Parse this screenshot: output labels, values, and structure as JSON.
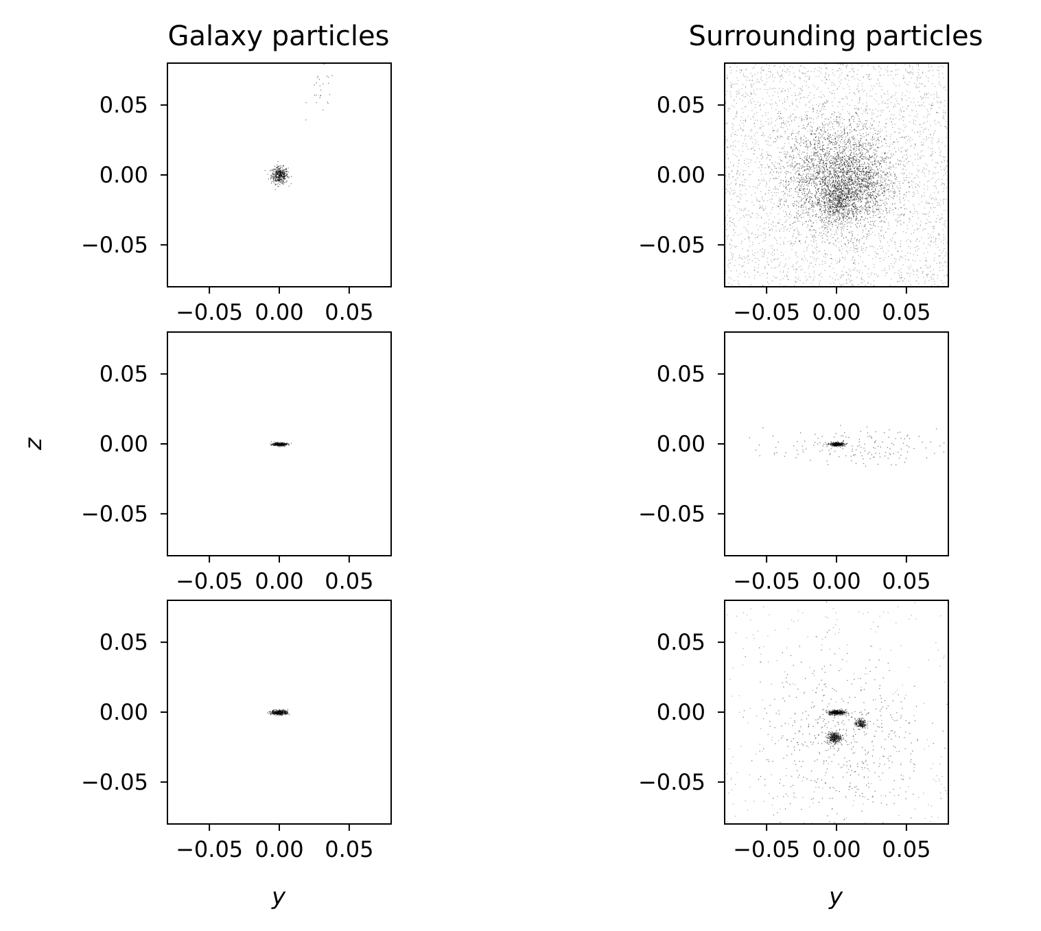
{
  "figure": {
    "column_titles": [
      "Galaxy particles",
      "Surrounding particles"
    ],
    "xlabel": "y",
    "ylabel": "z"
  },
  "colors": {
    "axes": "#000000",
    "particles": "#000000",
    "background": "#ffffff"
  },
  "chart_data": [
    {
      "type": "scatter",
      "panel": "row1-col1",
      "column": "Galaxy particles",
      "xlim": [
        -0.08,
        0.08
      ],
      "ylim": [
        -0.08,
        0.08
      ],
      "xticks": [
        -0.05,
        0.0,
        0.05
      ],
      "xtick_labels": [
        "−0.05",
        "0.00",
        "0.05"
      ],
      "yticks": [
        -0.05,
        0.0,
        0.05
      ],
      "ytick_labels": [
        "−0.05",
        "0.00",
        "0.05"
      ],
      "grid": false,
      "clusters": [
        {
          "center": [
            0.0,
            0.0
          ],
          "spread": [
            0.003,
            0.003
          ],
          "points": 420
        },
        {
          "center": [
            0.03,
            0.06
          ],
          "spread": [
            0.005,
            0.008
          ],
          "points": 25
        }
      ]
    },
    {
      "type": "scatter",
      "panel": "row1-col2",
      "column": "Surrounding particles",
      "xlim": [
        -0.08,
        0.08
      ],
      "ylim": [
        -0.08,
        0.08
      ],
      "xticks": [
        -0.05,
        0.0,
        0.05
      ],
      "xtick_labels": [
        "−0.05",
        "0.00",
        "0.05"
      ],
      "yticks": [
        -0.05,
        0.0,
        0.05
      ],
      "ytick_labels": [
        "−0.05",
        "0.00",
        "0.05"
      ],
      "grid": false,
      "uniform_background_points": 3200,
      "clusters": [
        {
          "center": [
            0.0,
            0.0
          ],
          "spread": [
            0.02,
            0.02
          ],
          "points": 2200
        },
        {
          "center": [
            0.0,
            -0.018
          ],
          "spread": [
            0.008,
            0.008
          ],
          "points": 500
        },
        {
          "center": [
            0.015,
            -0.008
          ],
          "spread": [
            0.012,
            0.012
          ],
          "points": 600
        }
      ]
    },
    {
      "type": "scatter",
      "panel": "row2-col1",
      "column": "Galaxy particles",
      "xlim": [
        -0.08,
        0.08
      ],
      "ylim": [
        -0.08,
        0.08
      ],
      "xticks": [
        -0.05,
        0.0,
        0.05
      ],
      "xtick_labels": [
        "−0.05",
        "0.00",
        "0.05"
      ],
      "yticks": [
        -0.05,
        0.0,
        0.05
      ],
      "ytick_labels": [
        "−0.05",
        "0.00",
        "0.05"
      ],
      "grid": false,
      "clusters": [
        {
          "center": [
            0.0,
            0.0
          ],
          "spread": [
            0.0025,
            0.0006
          ],
          "points": 350
        }
      ]
    },
    {
      "type": "scatter",
      "panel": "row2-col2",
      "column": "Surrounding particles",
      "xlim": [
        -0.08,
        0.08
      ],
      "ylim": [
        -0.08,
        0.08
      ],
      "xticks": [
        -0.05,
        0.0,
        0.05
      ],
      "xtick_labels": [
        "−0.05",
        "0.00",
        "0.05"
      ],
      "yticks": [
        -0.05,
        0.0,
        0.05
      ],
      "ytick_labels": [
        "−0.05",
        "0.00",
        "0.05"
      ],
      "grid": false,
      "clusters": [
        {
          "center": [
            0.0,
            0.0
          ],
          "spread": [
            0.0025,
            0.0006
          ],
          "points": 380
        },
        {
          "center": [
            0.01,
            -0.002
          ],
          "spread": [
            0.03,
            0.006
          ],
          "points": 160
        }
      ]
    },
    {
      "type": "scatter",
      "panel": "row3-col1",
      "column": "Galaxy particles",
      "xlim": [
        -0.08,
        0.08
      ],
      "ylim": [
        -0.08,
        0.08
      ],
      "xticks": [
        -0.05,
        0.0,
        0.05
      ],
      "xtick_labels": [
        "−0.05",
        "0.00",
        "0.05"
      ],
      "yticks": [
        -0.05,
        0.0,
        0.05
      ],
      "ytick_labels": [
        "−0.05",
        "0.00",
        "0.05"
      ],
      "grid": false,
      "clusters": [
        {
          "center": [
            0.0,
            0.0
          ],
          "spread": [
            0.003,
            0.0009
          ],
          "points": 380
        }
      ]
    },
    {
      "type": "scatter",
      "panel": "row3-col2",
      "column": "Surrounding particles",
      "xlim": [
        -0.08,
        0.08
      ],
      "ylim": [
        -0.08,
        0.08
      ],
      "xticks": [
        -0.05,
        0.0,
        0.05
      ],
      "xtick_labels": [
        "−0.05",
        "0.00",
        "0.05"
      ],
      "yticks": [
        -0.05,
        0.0,
        0.05
      ],
      "ytick_labels": [
        "−0.05",
        "0.00",
        "0.05"
      ],
      "grid": false,
      "uniform_background_points": 250,
      "clusters": [
        {
          "center": [
            0.0,
            0.0
          ],
          "spread": [
            0.003,
            0.0009
          ],
          "points": 380
        },
        {
          "center": [
            -0.002,
            -0.018
          ],
          "spread": [
            0.0025,
            0.002
          ],
          "points": 320
        },
        {
          "center": [
            0.017,
            -0.008
          ],
          "spread": [
            0.002,
            0.0018
          ],
          "points": 200
        },
        {
          "center": [
            0.005,
            -0.02
          ],
          "spread": [
            0.03,
            0.03
          ],
          "points": 500
        }
      ]
    }
  ]
}
